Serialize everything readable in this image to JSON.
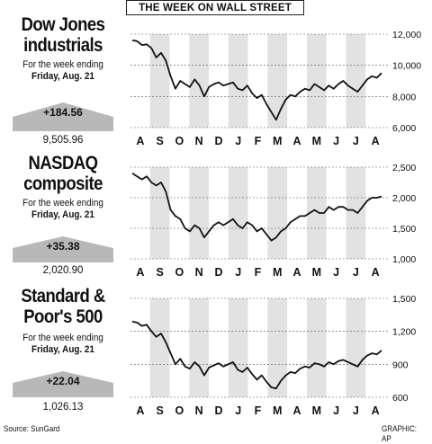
{
  "banner": "THE WEEK ON WALL STREET",
  "source": "Source: SunGard",
  "credit": "GRAPHIC: AP",
  "months": [
    "A",
    "S",
    "O",
    "N",
    "D",
    "J",
    "F",
    "M",
    "A",
    "M",
    "J",
    "J",
    "A"
  ],
  "colors": {
    "line": "#111111",
    "band": "#e2e2e2",
    "arrow": "#b8b8b8"
  },
  "chart_data": [
    {
      "type": "line",
      "title": "Dow Jones industrials",
      "subtitle": "For the week ending",
      "subtitle2": "Friday, Aug. 21",
      "change": "+184.56",
      "close": "9,505.96",
      "ylim": [
        6000,
        12000
      ],
      "yticks": [
        12000,
        10000,
        8000,
        6000
      ],
      "ytick_labels": [
        "12,000",
        "10,000",
        "8,000",
        "6,000"
      ],
      "series": [
        {
          "values": [
            11600,
            11550,
            11300,
            11350,
            11100,
            10500,
            10800,
            10300,
            9300,
            8500,
            9000,
            8800,
            8600,
            9100,
            8700,
            8000,
            8600,
            8800,
            8900,
            8700,
            8800,
            8900,
            8500,
            8400,
            8700,
            8200,
            7900,
            8100,
            7500,
            7000,
            6500,
            7200,
            7800,
            8100,
            8000,
            8300,
            8500,
            8400,
            8800,
            8600,
            8400,
            8700,
            8500,
            8800,
            9000,
            8700,
            8500,
            8300,
            8700,
            9100,
            9300,
            9200,
            9500
          ]
        }
      ]
    },
    {
      "type": "line",
      "title": "NASDAQ composite",
      "subtitle": "For the week ending",
      "subtitle2": "Friday, Aug. 21",
      "change": "+35.38",
      "close": "2,020.90",
      "ylim": [
        1000,
        2500
      ],
      "yticks": [
        2500,
        2000,
        1500,
        1000
      ],
      "ytick_labels": [
        "2,500",
        "2,000",
        "1,500",
        "1,000"
      ],
      "series": [
        {
          "values": [
            2400,
            2350,
            2300,
            2350,
            2250,
            2200,
            2250,
            2100,
            1800,
            1700,
            1650,
            1500,
            1450,
            1550,
            1500,
            1350,
            1450,
            1550,
            1600,
            1550,
            1600,
            1650,
            1550,
            1500,
            1600,
            1550,
            1450,
            1500,
            1400,
            1300,
            1350,
            1450,
            1500,
            1600,
            1650,
            1700,
            1700,
            1750,
            1800,
            1750,
            1750,
            1850,
            1800,
            1850,
            1850,
            1800,
            1800,
            1750,
            1850,
            1950,
            2000,
            2000,
            2020
          ]
        }
      ]
    },
    {
      "type": "line",
      "title": "Standard & Poor's 500",
      "subtitle": "For the week ending",
      "subtitle2": "Friday, Aug. 21",
      "change": "+22.04",
      "close": "1,026.13",
      "ylim": [
        600,
        1500
      ],
      "yticks": [
        1500,
        1200,
        900,
        600
      ],
      "ytick_labels": [
        "1,500",
        "1,200",
        "900",
        "600"
      ],
      "series": [
        {
          "values": [
            1290,
            1280,
            1250,
            1260,
            1200,
            1150,
            1180,
            1100,
            1000,
            900,
            950,
            880,
            860,
            920,
            880,
            800,
            870,
            890,
            910,
            880,
            900,
            920,
            850,
            830,
            870,
            810,
            760,
            800,
            740,
            690,
            680,
            750,
            800,
            830,
            820,
            860,
            880,
            870,
            910,
            900,
            880,
            920,
            900,
            930,
            940,
            920,
            900,
            880,
            940,
            980,
            1000,
            990,
            1026
          ]
        }
      ]
    }
  ]
}
